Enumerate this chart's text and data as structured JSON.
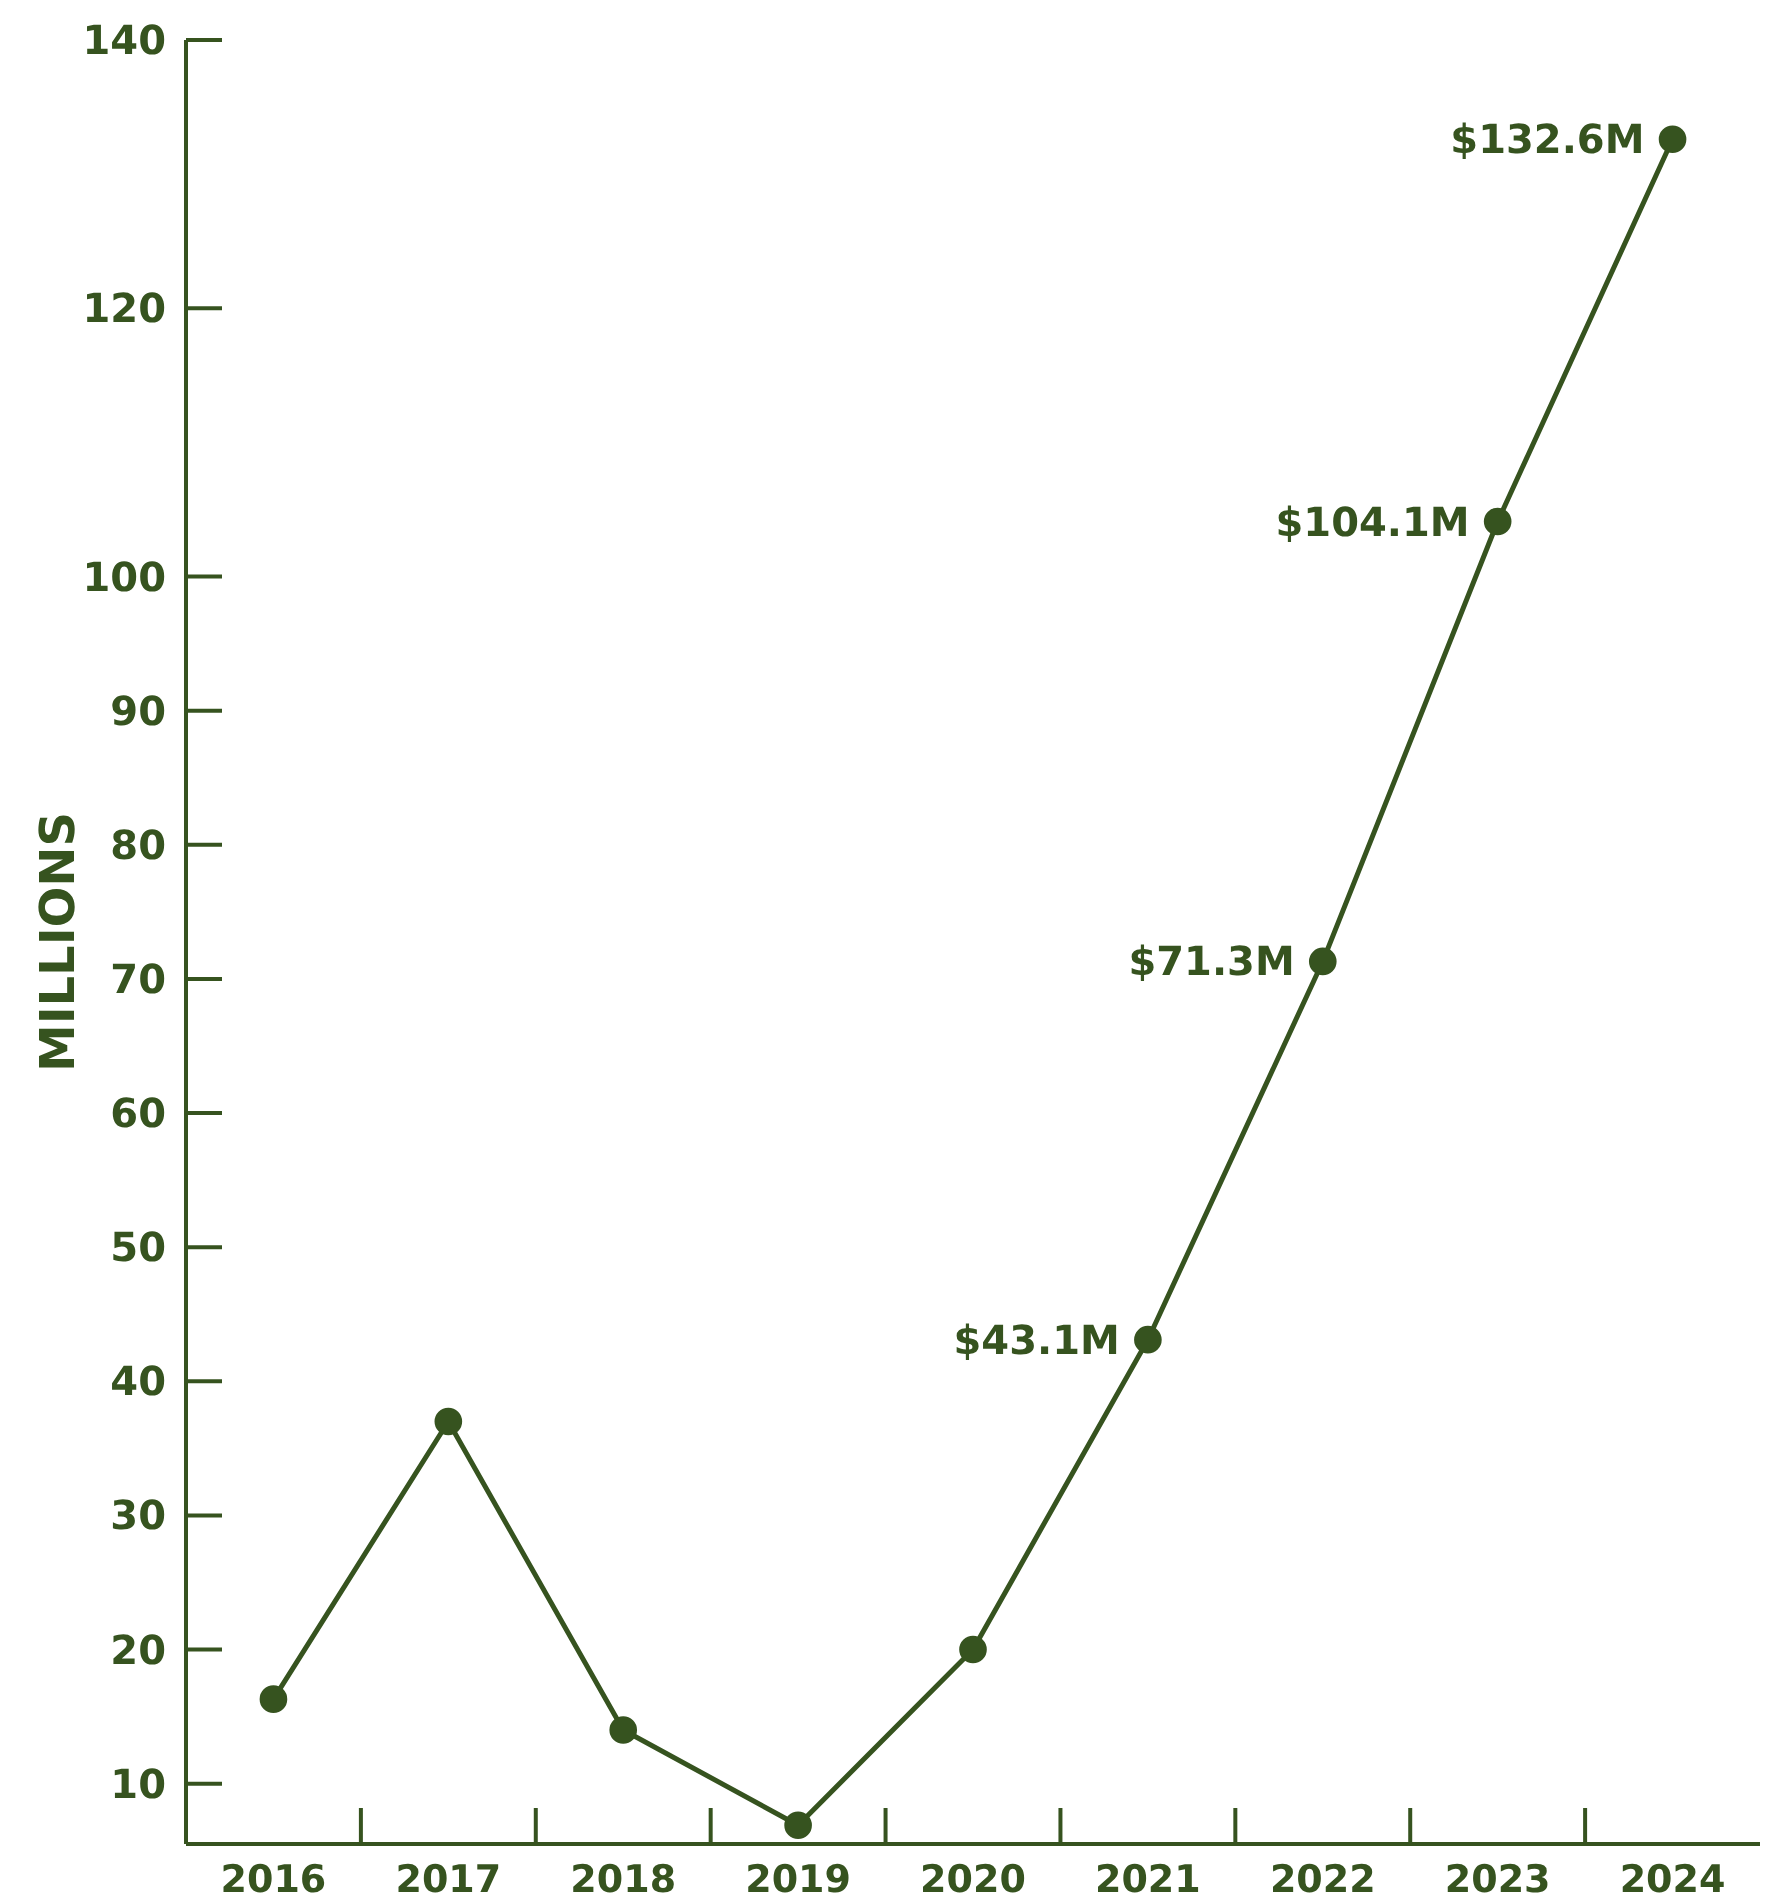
{
  "chart_data": {
    "type": "line",
    "ylabel": "MILLIONS",
    "categories": [
      "2016",
      "2017",
      "2018",
      "2019",
      "2020",
      "2021",
      "2022",
      "2023",
      "2024"
    ],
    "series": [
      {
        "color": "#36531f",
        "values": [
          16.3,
          37,
          14,
          6.9,
          20,
          43.1,
          71.3,
          104.1,
          132.6
        ],
        "value_labels": [
          null,
          null,
          null,
          null,
          null,
          "$43.1M",
          "$71.3M",
          "$104.1M",
          "$132.6M"
        ]
      }
    ],
    "ylim": [
      5.5,
      140
    ],
    "yticks": [
      10,
      20,
      30,
      40,
      50,
      60,
      70,
      80,
      90,
      100,
      120,
      140
    ],
    "marker": "circle",
    "line_style": "solid",
    "grid": false
  }
}
